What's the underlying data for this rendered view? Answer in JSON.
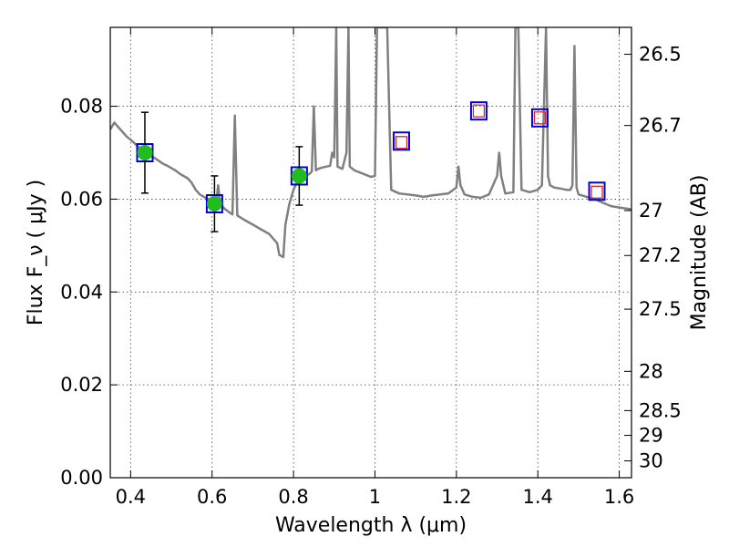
{
  "chart_data": {
    "type": "scatter",
    "title": "",
    "xlabel": "Wavelength  λ (μm)",
    "ylabel": "Flux  F_ν  ( μJy )",
    "ylabel_right": "Magnitude (AB)",
    "xlim": [
      0.35,
      1.63
    ],
    "ylim": [
      0.0,
      0.097
    ],
    "grid": true,
    "x_ticks": [
      {
        "value": 0.4,
        "label": "0.4"
      },
      {
        "value": 0.6,
        "label": "0.6"
      },
      {
        "value": 0.8,
        "label": "0.8"
      },
      {
        "value": 1.0,
        "label": "1"
      },
      {
        "value": 1.2,
        "label": "1.2"
      },
      {
        "value": 1.4,
        "label": "1.4"
      },
      {
        "value": 1.6,
        "label": "1.6"
      }
    ],
    "y_ticks": [
      {
        "value": 0.0,
        "label": "0.00"
      },
      {
        "value": 0.02,
        "label": "0.02"
      },
      {
        "value": 0.04,
        "label": "0.04"
      },
      {
        "value": 0.06,
        "label": "0.06"
      },
      {
        "value": 0.08,
        "label": "0.08"
      }
    ],
    "y_right_ticks": [
      {
        "value": 26.5,
        "label": "26.5"
      },
      {
        "value": 26.7,
        "label": "26.7"
      },
      {
        "value": 27.0,
        "label": "27"
      },
      {
        "value": 27.2,
        "label": "27.2"
      },
      {
        "value": 27.5,
        "label": "27.5"
      },
      {
        "value": 28.0,
        "label": "28"
      },
      {
        "value": 28.5,
        "label": "28.5"
      },
      {
        "value": 29.0,
        "label": "29"
      },
      {
        "value": 30.0,
        "label": "30"
      }
    ],
    "colors": {
      "sed": "#808080",
      "detected": "#22bb22",
      "model_box": "#0000dd",
      "upper_limit": "#dd2222",
      "errorbar": "#000000"
    },
    "series": [
      {
        "kind": "line",
        "points": [
          [
            0.35,
            0.075
          ],
          [
            0.36,
            0.0765
          ],
          [
            0.37,
            0.0755
          ],
          [
            0.38,
            0.0745
          ],
          [
            0.39,
            0.0735
          ],
          [
            0.4,
            0.0728
          ],
          [
            0.41,
            0.072
          ],
          [
            0.42,
            0.0712
          ],
          [
            0.43,
            0.0705
          ],
          [
            0.44,
            0.07
          ],
          [
            0.45,
            0.0693
          ],
          [
            0.46,
            0.0688
          ],
          [
            0.47,
            0.0682
          ],
          [
            0.48,
            0.0676
          ],
          [
            0.49,
            0.0672
          ],
          [
            0.5,
            0.0667
          ],
          [
            0.51,
            0.0662
          ],
          [
            0.52,
            0.0655
          ],
          [
            0.53,
            0.065
          ],
          [
            0.54,
            0.0645
          ],
          [
            0.55,
            0.0635
          ],
          [
            0.56,
            0.062
          ],
          [
            0.57,
            0.061
          ],
          [
            0.58,
            0.0605
          ],
          [
            0.59,
            0.06
          ],
          [
            0.6,
            0.0595
          ],
          [
            0.61,
            0.0592
          ],
          [
            0.615,
            0.063
          ],
          [
            0.62,
            0.059
          ],
          [
            0.63,
            0.058
          ],
          [
            0.64,
            0.0573
          ],
          [
            0.65,
            0.0567
          ],
          [
            0.656,
            0.078
          ],
          [
            0.662,
            0.0565
          ],
          [
            0.68,
            0.0555
          ],
          [
            0.7,
            0.0545
          ],
          [
            0.72,
            0.0535
          ],
          [
            0.74,
            0.0525
          ],
          [
            0.75,
            0.0515
          ],
          [
            0.76,
            0.0505
          ],
          [
            0.765,
            0.048
          ],
          [
            0.775,
            0.0475
          ],
          [
            0.78,
            0.0545
          ],
          [
            0.79,
            0.059
          ],
          [
            0.8,
            0.062
          ],
          [
            0.81,
            0.064
          ],
          [
            0.82,
            0.0645
          ],
          [
            0.83,
            0.065
          ],
          [
            0.84,
            0.0655
          ],
          [
            0.845,
            0.066
          ],
          [
            0.85,
            0.08
          ],
          [
            0.855,
            0.0662
          ],
          [
            0.86,
            0.0665
          ],
          [
            0.87,
            0.0668
          ],
          [
            0.88,
            0.067
          ],
          [
            0.89,
            0.0672
          ],
          [
            0.895,
            0.07
          ],
          [
            0.9,
            0.069
          ],
          [
            0.905,
            0.097
          ],
          [
            0.908,
            0.067
          ],
          [
            0.92,
            0.0665
          ],
          [
            0.93,
            0.07
          ],
          [
            0.935,
            0.097
          ],
          [
            0.938,
            0.067
          ],
          [
            0.95,
            0.0662
          ],
          [
            0.97,
            0.0655
          ],
          [
            0.99,
            0.0648
          ],
          [
            1.0,
            0.065
          ],
          [
            1.005,
            0.097
          ],
          [
            1.03,
            0.097
          ],
          [
            1.04,
            0.062
          ],
          [
            1.06,
            0.0612
          ],
          [
            1.08,
            0.061
          ],
          [
            1.1,
            0.0608
          ],
          [
            1.12,
            0.0605
          ],
          [
            1.14,
            0.0608
          ],
          [
            1.16,
            0.061
          ],
          [
            1.18,
            0.0612
          ],
          [
            1.2,
            0.0625
          ],
          [
            1.205,
            0.067
          ],
          [
            1.21,
            0.063
          ],
          [
            1.22,
            0.061
          ],
          [
            1.24,
            0.0605
          ],
          [
            1.26,
            0.0603
          ],
          [
            1.28,
            0.061
          ],
          [
            1.3,
            0.065
          ],
          [
            1.305,
            0.07
          ],
          [
            1.31,
            0.065
          ],
          [
            1.32,
            0.0612
          ],
          [
            1.34,
            0.0615
          ],
          [
            1.345,
            0.097
          ],
          [
            1.352,
            0.097
          ],
          [
            1.36,
            0.062
          ],
          [
            1.38,
            0.0615
          ],
          [
            1.4,
            0.062
          ],
          [
            1.41,
            0.063
          ],
          [
            1.42,
            0.097
          ],
          [
            1.425,
            0.065
          ],
          [
            1.43,
            0.063
          ],
          [
            1.44,
            0.0625
          ],
          [
            1.46,
            0.0622
          ],
          [
            1.47,
            0.062
          ],
          [
            1.48,
            0.062
          ],
          [
            1.485,
            0.063
          ],
          [
            1.49,
            0.093
          ],
          [
            1.495,
            0.0625
          ],
          [
            1.5,
            0.061
          ],
          [
            1.52,
            0.0605
          ],
          [
            1.54,
            0.06
          ],
          [
            1.56,
            0.0592
          ],
          [
            1.58,
            0.0585
          ],
          [
            1.6,
            0.0582
          ],
          [
            1.63,
            0.0578
          ]
        ]
      },
      {
        "kind": "model_boxes",
        "points": [
          [
            0.435,
            0.07
          ],
          [
            0.606,
            0.059
          ],
          [
            0.814,
            0.065
          ],
          [
            1.065,
            0.0725
          ],
          [
            1.255,
            0.079
          ],
          [
            1.405,
            0.0775
          ],
          [
            1.545,
            0.0617
          ]
        ]
      },
      {
        "kind": "detected",
        "points": [
          {
            "x": 0.435,
            "y": 0.07,
            "err": 0.0087
          },
          {
            "x": 0.606,
            "y": 0.059,
            "err": 0.006
          },
          {
            "x": 0.814,
            "y": 0.065,
            "err": 0.0063
          }
        ]
      },
      {
        "kind": "upper_limits",
        "points": [
          [
            1.065,
            0.0722
          ],
          [
            1.255,
            0.079
          ],
          [
            1.405,
            0.0775
          ],
          [
            1.545,
            0.0615
          ]
        ]
      }
    ]
  }
}
